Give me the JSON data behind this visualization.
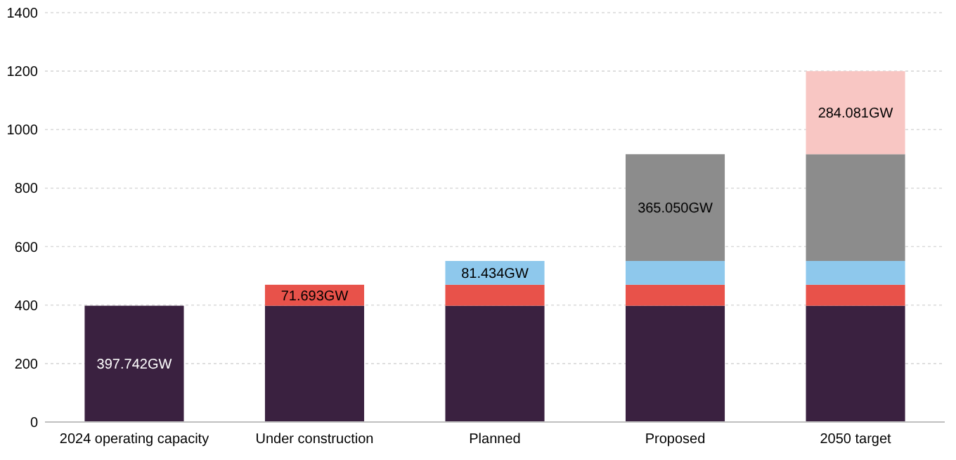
{
  "chart_data": {
    "type": "bar",
    "stacked": true,
    "categories": [
      "2024 operating capacity",
      "Under construction",
      "Planned",
      "Proposed",
      "2050 target"
    ],
    "series": [
      {
        "color": "#3a2140",
        "values": [
          397.742,
          397.742,
          397.742,
          397.742,
          397.742
        ],
        "value_labels": [
          "397.742GW",
          null,
          null,
          null,
          null
        ]
      },
      {
        "color": "#e8524a",
        "values": [
          null,
          71.693,
          71.693,
          71.693,
          71.693
        ],
        "value_labels": [
          null,
          "71.693GW",
          null,
          null,
          null
        ]
      },
      {
        "color": "#8ec8ec",
        "values": [
          null,
          null,
          81.434,
          81.434,
          81.434
        ],
        "value_labels": [
          null,
          null,
          "81.434GW",
          null,
          null
        ]
      },
      {
        "color": "#8c8c8c",
        "values": [
          null,
          null,
          null,
          365.05,
          365.05
        ],
        "value_labels": [
          null,
          null,
          null,
          "365.050GW",
          null
        ]
      },
      {
        "color": "#f8c6c3",
        "values": [
          null,
          null,
          null,
          null,
          284.081
        ],
        "value_labels": [
          null,
          null,
          null,
          null,
          "284.081GW"
        ]
      }
    ],
    "ylim": [
      0,
      1400
    ],
    "yticks": [
      0,
      200,
      400,
      600,
      800,
      1000,
      1200,
      1400
    ],
    "grid": "y"
  }
}
